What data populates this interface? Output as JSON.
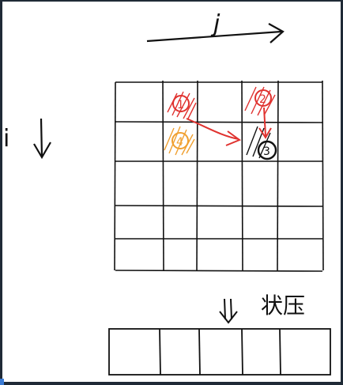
{
  "labels": {
    "j": "j",
    "i": "i",
    "state_compress": "状压",
    "down_arrow": "⇓"
  },
  "grid": {
    "rows": 5,
    "cols": 5
  },
  "marks": {
    "red_top_left": "①",
    "orange": "④",
    "red_top_right": "②",
    "black_circled": "③"
  },
  "colors": {
    "ink": "#111111",
    "red": "#e0322f",
    "orange": "#f0a030",
    "frame": "#1f2a36"
  },
  "bit_array": {
    "cells": 5
  }
}
